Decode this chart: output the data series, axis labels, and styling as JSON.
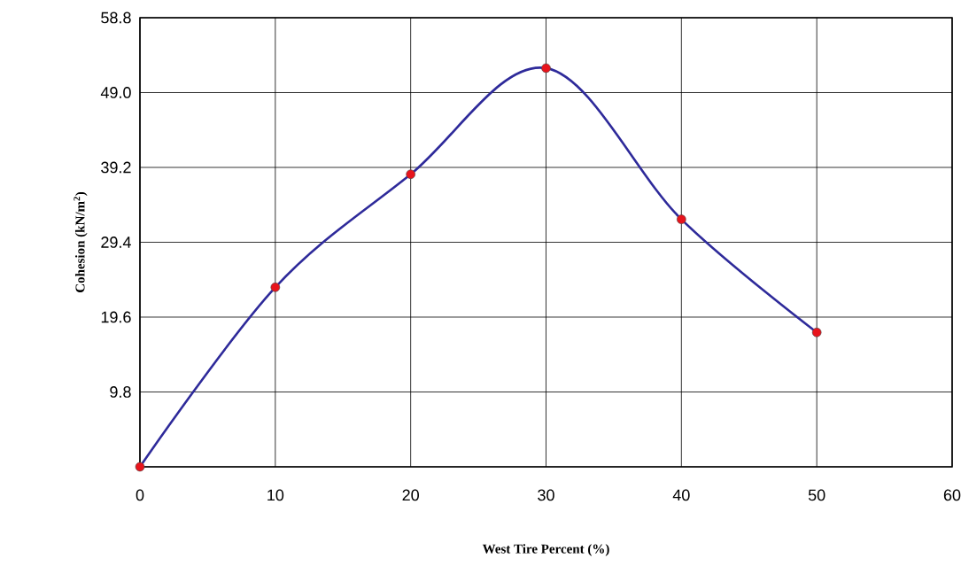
{
  "chart_data": {
    "type": "line",
    "xlabel": "West Tire Percent (%)",
    "ylabel": "Cohesion (kN/m$^{2}$)",
    "x": [
      0,
      10,
      20,
      30,
      40,
      50
    ],
    "series": [
      {
        "color": "#2e2a9a",
        "values": [
          0,
          23.5,
          38.3,
          52.2,
          32.4,
          17.6
        ]
      }
    ],
    "xlim": [
      0,
      60
    ],
    "xticks": [
      0,
      10,
      20,
      30,
      40,
      50,
      60
    ],
    "ylim": [
      0,
      58.8
    ],
    "yticks": [
      {
        "value": 0,
        "label": null
      },
      9.8,
      19.6,
      29.4,
      39.2,
      {
        "value": 49,
        "label": "49.0"
      },
      58.8
    ],
    "grid": true,
    "marker": "circle",
    "line_style": "solid"
  }
}
